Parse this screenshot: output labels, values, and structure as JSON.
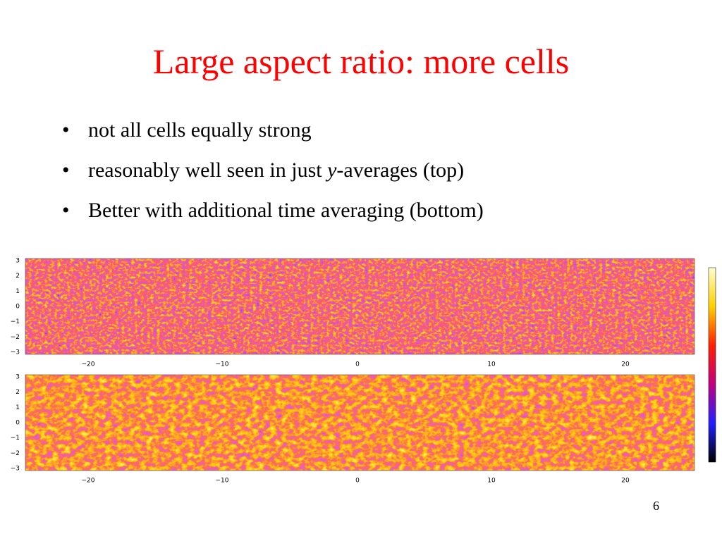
{
  "title": "Large aspect ratio: more cells",
  "bullets": [
    {
      "parts": [
        "not all cells equally strong"
      ]
    },
    {
      "parts": [
        "reasonably well seen in just ",
        "y",
        "-averages (top)"
      ]
    },
    {
      "parts": [
        "Better with additional time averaging (bottom)"
      ]
    }
  ],
  "panels": [
    {
      "yticks": [
        "3",
        "2",
        "1",
        "0",
        "−1",
        "−2",
        "−3"
      ],
      "xticks": [
        "−20",
        "−10",
        "0",
        "10",
        "20"
      ]
    },
    {
      "yticks": [
        "3",
        "2",
        "1",
        "0",
        "−1",
        "−2",
        "−3"
      ],
      "xticks": [
        "−20",
        "−10",
        "0",
        "10",
        "20"
      ]
    }
  ],
  "page_number": "6"
}
